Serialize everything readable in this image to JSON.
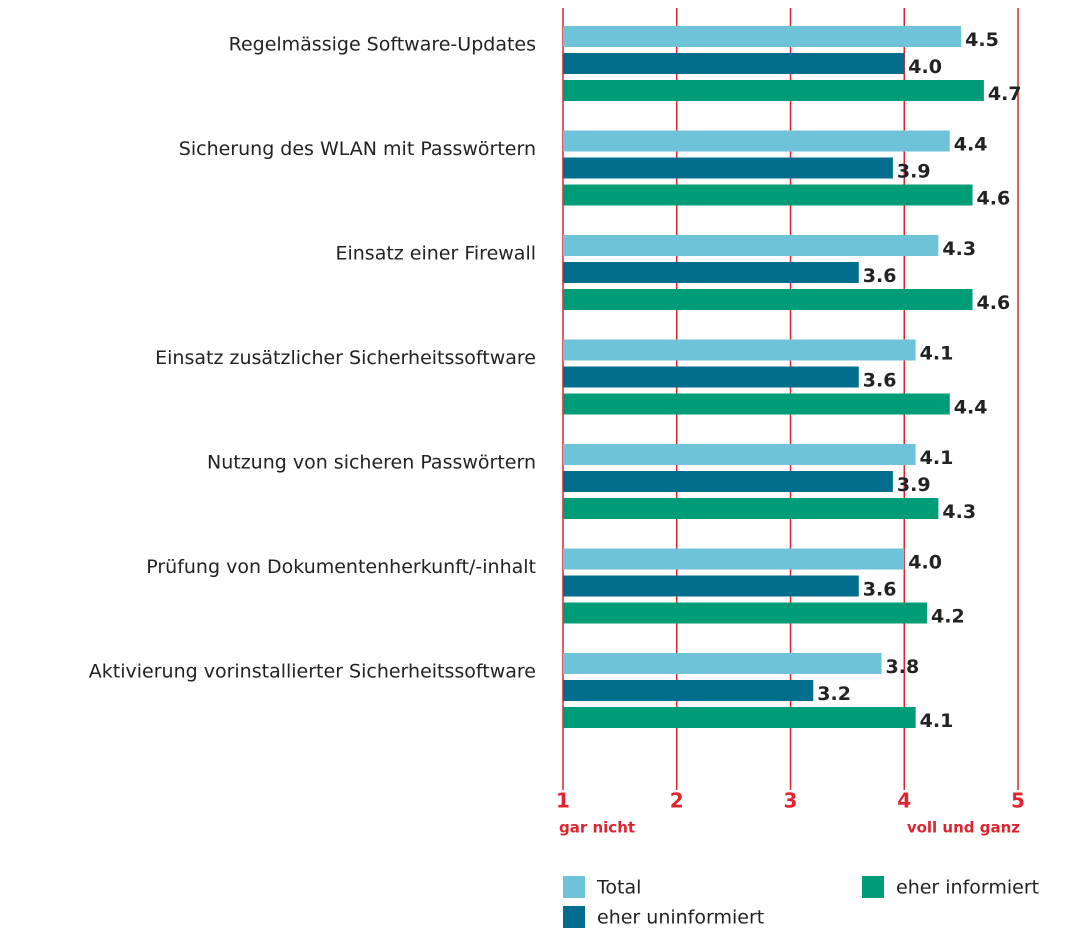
{
  "chart_data": {
    "type": "barh",
    "categories": [
      "Regelmässige Software-Updates",
      "Sicherung des WLAN mit Passwörtern",
      "Einsatz einer Firewall",
      "Einsatz zusätzlicher Sicherheitssoftware",
      "Nutzung von sicheren Passwörtern",
      "Prüfung von Dokumentenherkunft/-inhalt",
      "Aktivierung vorinstallierter Sicherheitssoftware"
    ],
    "series": [
      {
        "name": "Total",
        "color": "#6ec3d8",
        "values": [
          4.5,
          4.4,
          4.3,
          4.1,
          4.1,
          4.0,
          3.8
        ],
        "value_labels": [
          "4.5",
          "4.4",
          "4.3",
          "4.1",
          "4.1",
          "4.0",
          "3.8"
        ]
      },
      {
        "name": "eher uninformiert",
        "color": "#006e8c",
        "values": [
          4.0,
          3.9,
          3.6,
          3.6,
          3.9,
          3.6,
          3.2
        ],
        "value_labels": [
          "4.0",
          "3.9",
          "3.6",
          "3.6",
          "3.9",
          "3.6",
          "3.2"
        ]
      },
      {
        "name": "eher informiert",
        "color": "#009b77",
        "values": [
          4.7,
          4.6,
          4.6,
          4.4,
          4.3,
          4.2,
          4.1
        ],
        "value_labels": [
          "4.7",
          "4.6",
          "4.6",
          "4.4",
          "4.3",
          "4.2",
          "4.1"
        ]
      }
    ],
    "xlim": [
      1,
      5
    ],
    "xticks": [
      1,
      2,
      3,
      4,
      5
    ],
    "grid": true,
    "grid_color": "#e0242f",
    "annotations": [
      "gar nicht",
      "voll und ganz"
    ]
  }
}
